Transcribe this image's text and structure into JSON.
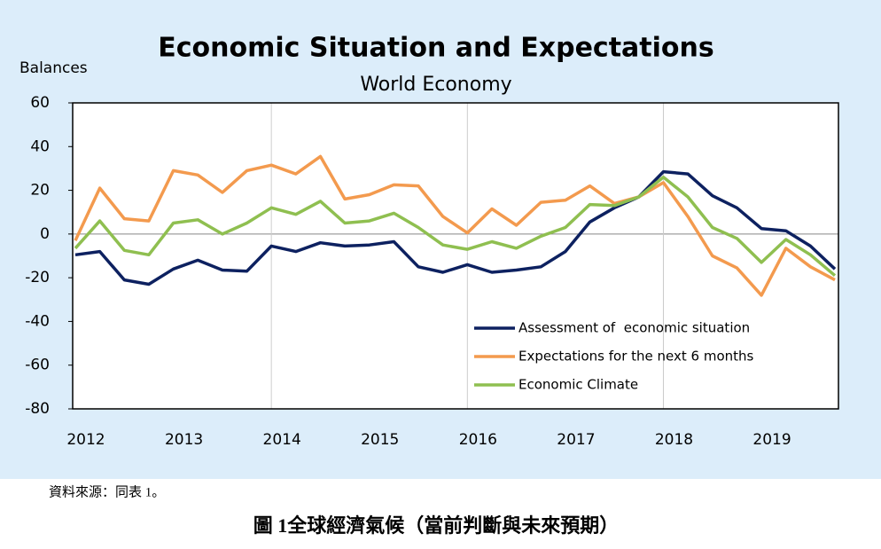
{
  "chart_data": {
    "type": "line",
    "title": "Economic Situation and Expectations",
    "subtitle": "World Economy",
    "y_axis_label": "Balances",
    "x": [
      2012,
      2012.25,
      2012.5,
      2012.75,
      2013,
      2013.25,
      2013.5,
      2013.75,
      2014,
      2014.25,
      2014.5,
      2014.75,
      2015,
      2015.25,
      2015.5,
      2015.75,
      2016,
      2016.25,
      2016.5,
      2016.75,
      2017,
      2017.25,
      2017.5,
      2017.75,
      2018,
      2018.25,
      2018.5,
      2018.75,
      2019,
      2019.25,
      2019.5,
      2019.75
    ],
    "xlim": [
      2012,
      2019.75
    ],
    "xticks": [
      2012,
      2013,
      2014,
      2015,
      2016,
      2017,
      2018,
      2019
    ],
    "xgrid": [
      2014,
      2016,
      2018
    ],
    "ylim": [
      -80,
      60
    ],
    "yticks": [
      -80,
      -60,
      -40,
      -20,
      0,
      20,
      40,
      60
    ],
    "zero_line": true,
    "legend": "lower right",
    "series": [
      {
        "name": "Assessment of  economic situation",
        "color": "#0d2160",
        "values": [
          -9.5,
          -8,
          -21,
          -23,
          -16,
          -12,
          -16.5,
          -17,
          -5.5,
          -8,
          -4,
          -5.5,
          -5,
          -3.5,
          -15,
          -17.5,
          -14,
          -17.5,
          -16.5,
          -15,
          -8,
          5.5,
          12,
          17,
          28.5,
          27.5,
          17.5,
          12,
          2.5,
          1.5,
          -5.5,
          -16
        ]
      },
      {
        "name": "Expectations for the next 6 months",
        "color": "#f39a4e",
        "values": [
          -3,
          21,
          7,
          6,
          29,
          27,
          19,
          29,
          31.5,
          27.5,
          35.5,
          16,
          18,
          22.5,
          22,
          8,
          0.5,
          11.5,
          4,
          14.5,
          15.5,
          22,
          14,
          17,
          23.5,
          8,
          -10,
          -15.5,
          -28,
          -6.5,
          -15,
          -21
        ]
      },
      {
        "name": "Economic Climate",
        "color": "#8fbf50",
        "values": [
          -6.5,
          6,
          -7.5,
          -9.5,
          5,
          6.5,
          0,
          5,
          12,
          9,
          15,
          5,
          6,
          9.5,
          3,
          -5,
          -7,
          -3.5,
          -6.5,
          -1,
          3,
          13.5,
          13,
          17,
          26,
          17,
          3,
          -2,
          -13,
          -2.5,
          -9.5,
          -19
        ]
      }
    ]
  },
  "source": "資料來源：同表 1。",
  "caption": "圖 1全球經濟氣候（當前判斷與未來預期）"
}
